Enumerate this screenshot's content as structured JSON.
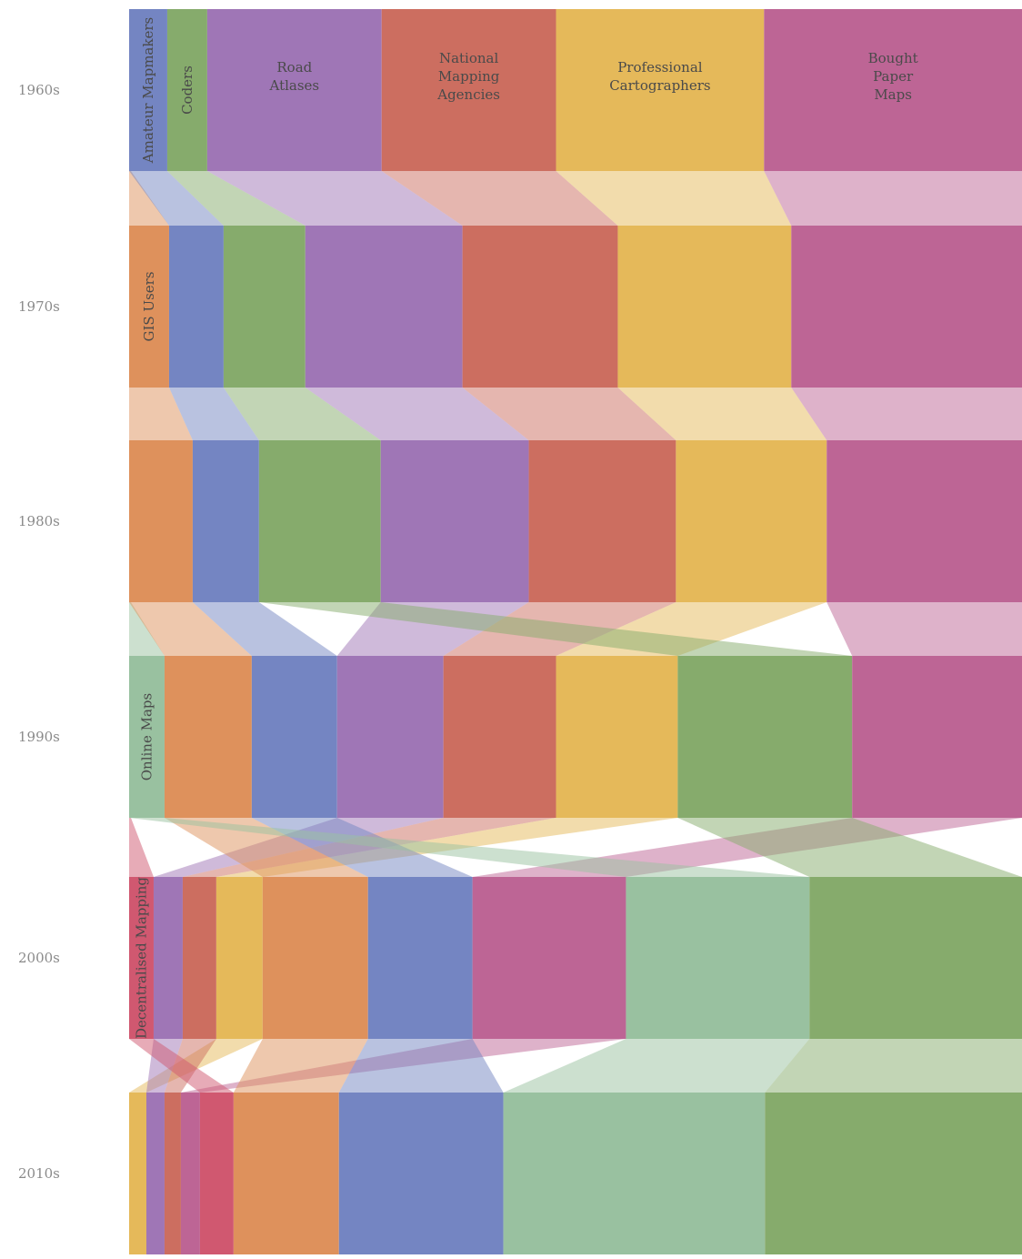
{
  "chart_data": {
    "type": "alluvial",
    "title": "",
    "xlabel": "",
    "ylabel": "",
    "colors": {
      "Amateur Mapmakers": "#7485c2",
      "Coders": "#86ab6c",
      "Road Atlases": "#9f76b6",
      "National Mapping Agencies": "#cc6e60",
      "Professional Cartographers": "#e5b95a",
      "Bought Paper Maps": "#bd6595",
      "GIS Users": "#de915c",
      "Online Maps": "#99c1a0",
      "Decentralised Mapping": "#d05870"
    },
    "stages": [
      {
        "decade": "1960s",
        "segments": [
          {
            "name": "Amateur Mapmakers",
            "value": 42,
            "label": "Amateur Mapmakers",
            "vertical": true
          },
          {
            "name": "Coders",
            "value": 44,
            "label": "Coders",
            "vertical": true
          },
          {
            "name": "Road Atlases",
            "value": 192,
            "label": "Road\nAtlases"
          },
          {
            "name": "National Mapping Agencies",
            "value": 192,
            "label": "National\nMapping\nAgencies"
          },
          {
            "name": "Professional Cartographers",
            "value": 229,
            "label": "Professional\nCartographers"
          },
          {
            "name": "Bought Paper Maps",
            "value": 284,
            "label": "Bought\nPaper\nMaps"
          }
        ]
      },
      {
        "decade": "1970s",
        "segments": [
          {
            "name": "GIS Users",
            "value": 44,
            "label": "GIS Users",
            "vertical": true
          },
          {
            "name": "Amateur Mapmakers",
            "value": 60
          },
          {
            "name": "Coders",
            "value": 90
          },
          {
            "name": "Road Atlases",
            "value": 173
          },
          {
            "name": "National Mapping Agencies",
            "value": 171
          },
          {
            "name": "Professional Cartographers",
            "value": 191
          },
          {
            "name": "Bought Paper Maps",
            "value": 254
          }
        ]
      },
      {
        "decade": "1980s",
        "segments": [
          {
            "name": "GIS Users",
            "value": 70
          },
          {
            "name": "Amateur Mapmakers",
            "value": 73
          },
          {
            "name": "Coders",
            "value": 134
          },
          {
            "name": "Road Atlases",
            "value": 163
          },
          {
            "name": "National Mapping Agencies",
            "value": 162
          },
          {
            "name": "Professional Cartographers",
            "value": 166
          },
          {
            "name": "Bought Paper Maps",
            "value": 215
          }
        ]
      },
      {
        "decade": "1990s",
        "segments": [
          {
            "name": "Online Maps",
            "value": 39,
            "label": "Online Maps",
            "vertical": true
          },
          {
            "name": "GIS Users",
            "value": 96
          },
          {
            "name": "Amateur Mapmakers",
            "value": 94
          },
          {
            "name": "Road Atlases",
            "value": 117
          },
          {
            "name": "National Mapping Agencies",
            "value": 124
          },
          {
            "name": "Professional Cartographers",
            "value": 134
          },
          {
            "name": "Coders",
            "value": 192
          },
          {
            "name": "Bought Paper Maps",
            "value": 187
          }
        ]
      },
      {
        "decade": "2000s",
        "segments": [
          {
            "name": "Decentralised Mapping",
            "value": 27,
            "label": "Decentralised Mapping",
            "vertical": true
          },
          {
            "name": "Road Atlases",
            "value": 32
          },
          {
            "name": "National Mapping Agencies",
            "value": 37
          },
          {
            "name": "Professional Cartographers",
            "value": 51
          },
          {
            "name": "GIS Users",
            "value": 116
          },
          {
            "name": "Amateur Mapmakers",
            "value": 115
          },
          {
            "name": "Bought Paper Maps",
            "value": 169
          },
          {
            "name": "Online Maps",
            "value": 202
          },
          {
            "name": "Coders",
            "value": 234
          }
        ]
      },
      {
        "decade": "2010s",
        "segments": [
          {
            "name": "Professional Cartographers",
            "value": 19
          },
          {
            "name": "Road Atlases",
            "value": 20
          },
          {
            "name": "National Mapping Agencies",
            "value": 18
          },
          {
            "name": "Bought Paper Maps",
            "value": 21
          },
          {
            "name": "Decentralised Mapping",
            "value": 37
          },
          {
            "name": "GIS Users",
            "value": 116
          },
          {
            "name": "Amateur Mapmakers",
            "value": 181
          },
          {
            "name": "Online Maps",
            "value": 288
          },
          {
            "name": "Coders",
            "value": 283
          }
        ]
      }
    ]
  }
}
